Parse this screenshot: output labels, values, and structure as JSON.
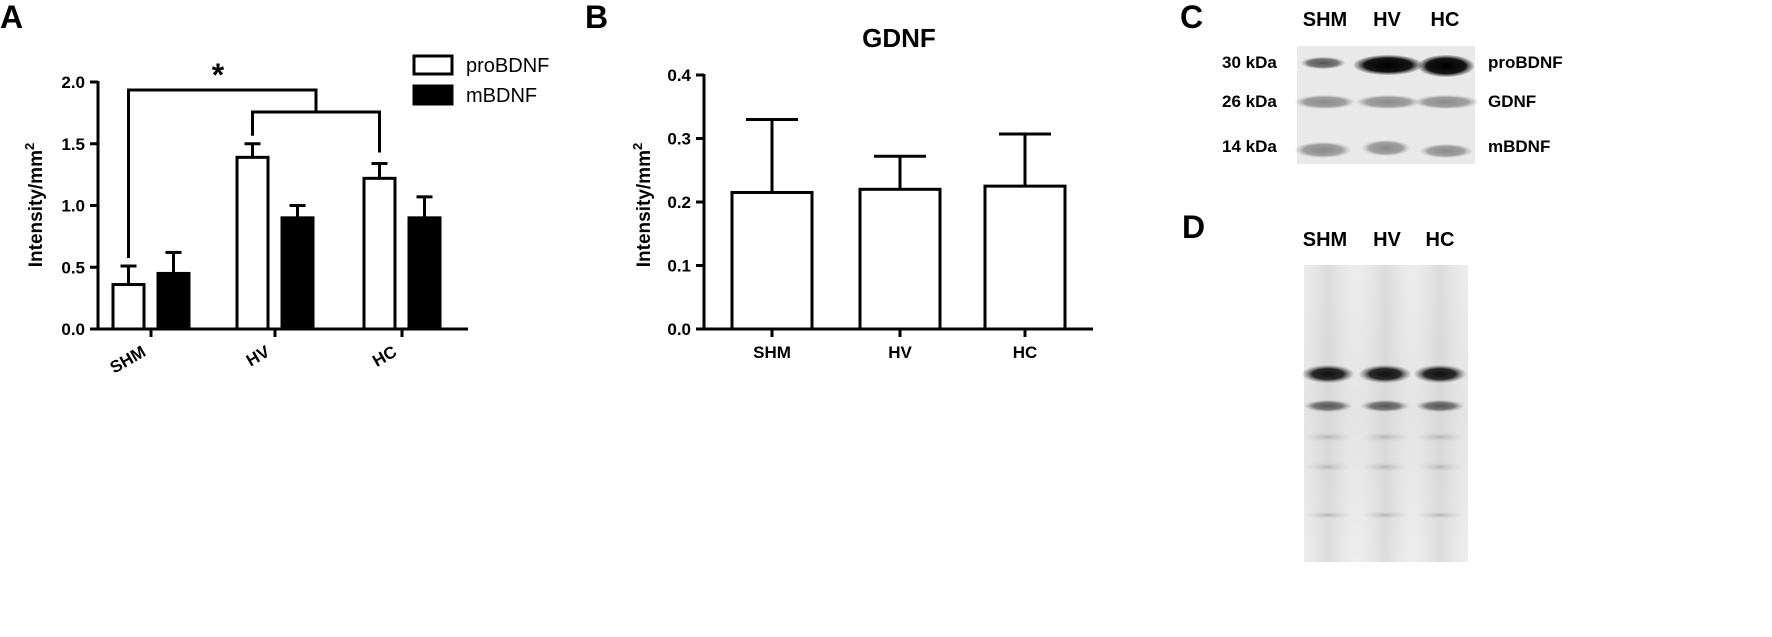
{
  "panels": {
    "a": "A",
    "b": "B",
    "c": "C",
    "d": "D"
  },
  "chart_data": [
    {
      "type": "bar",
      "panel": "A",
      "title": "",
      "xlabel": "",
      "ylabel": "Intensity/mm",
      "ylabel_sup": "2",
      "ylim": [
        0,
        2.0
      ],
      "yticks": [
        "0.0",
        "0.5",
        "1.0",
        "1.5",
        "2.0"
      ],
      "categories": [
        "SHM",
        "HV",
        "HC"
      ],
      "series": [
        {
          "name": "proBDNF",
          "values": [
            0.36,
            1.39,
            1.22
          ],
          "errors": [
            0.15,
            0.11,
            0.12
          ],
          "fill": "#ffffff"
        },
        {
          "name": "mBDNF",
          "values": [
            0.45,
            0.9,
            0.9
          ],
          "errors": [
            0.17,
            0.1,
            0.17
          ],
          "fill": "#000000"
        }
      ],
      "legend": "top-right",
      "annotation": "*"
    },
    {
      "type": "bar",
      "panel": "B",
      "title": "GDNF",
      "xlabel": "",
      "ylabel": "Intensity/mm",
      "ylabel_sup": "2",
      "ylim": [
        0,
        0.4
      ],
      "yticks": [
        "0.0",
        "0.1",
        "0.2",
        "0.3",
        "0.4"
      ],
      "categories": [
        "SHM",
        "HV",
        "HC"
      ],
      "values": [
        0.215,
        0.22,
        0.225
      ],
      "errors": [
        0.115,
        0.052,
        0.082
      ]
    }
  ],
  "blot_c": {
    "lanes": [
      "SHM",
      "HV",
      "HC"
    ],
    "rows": [
      {
        "kda": "30 kDa",
        "protein": "proBDNF"
      },
      {
        "kda": "26 kDa",
        "protein": "GDNF"
      },
      {
        "kda": "14 kDa",
        "protein": "mBDNF"
      }
    ]
  },
  "gel_d": {
    "lanes": [
      "SHM",
      "HV",
      "HC"
    ]
  }
}
